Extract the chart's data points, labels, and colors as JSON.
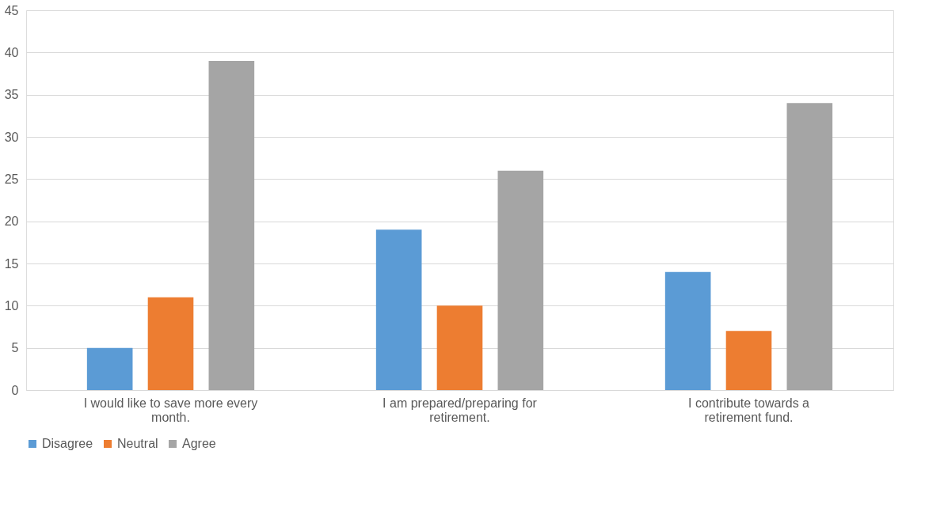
{
  "chart_data": {
    "type": "bar",
    "categories": [
      "I would like to save more every month.",
      "I am prepared/preparing for retirement.",
      "I contribute towards a retirement fund."
    ],
    "series": [
      {
        "name": "Disagree",
        "color": "#5b9bd5",
        "values": [
          5,
          19,
          14
        ]
      },
      {
        "name": "Neutral",
        "color": "#ed7d31",
        "values": [
          11,
          10,
          7
        ]
      },
      {
        "name": "Agree",
        "color": "#a5a5a5",
        "values": [
          39,
          26,
          34
        ]
      }
    ],
    "ylim": [
      0,
      45
    ],
    "yticks": [
      0,
      5,
      10,
      15,
      20,
      25,
      30,
      35,
      40,
      45
    ],
    "grid": "y",
    "legend": "bottom"
  }
}
